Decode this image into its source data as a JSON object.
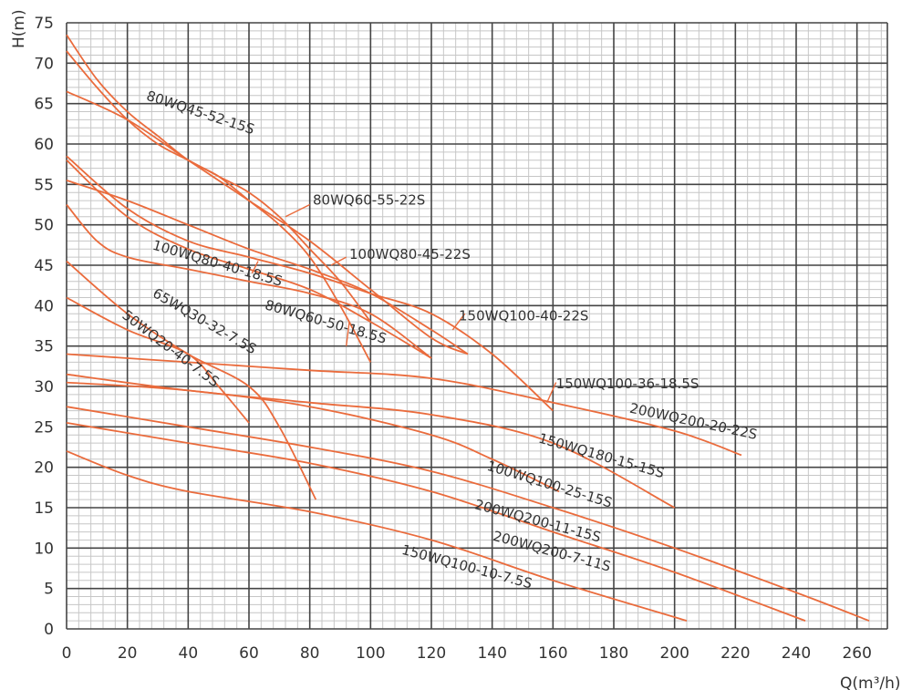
{
  "chart_data": {
    "type": "line",
    "title": "",
    "xlabel": "Q(m³/h)",
    "ylabel": "H(m)",
    "xlim": [
      0,
      270
    ],
    "ylim": [
      0,
      75
    ],
    "x_ticks": [
      0,
      20,
      40,
      60,
      80,
      100,
      120,
      140,
      160,
      180,
      200,
      220,
      240,
      260
    ],
    "y_ticks": [
      0,
      5,
      10,
      15,
      20,
      25,
      30,
      35,
      40,
      45,
      50,
      55,
      60,
      65,
      70,
      75
    ],
    "grid": true,
    "colors": {
      "curve": "#ea6b3c",
      "grid_major": "#444444",
      "grid_minor": "#c6c6c6",
      "text": "#333333"
    },
    "series": [
      {
        "name": "80WQ45-52-15S",
        "points": [
          [
            0,
            73.5
          ],
          [
            10,
            68
          ],
          [
            20,
            64
          ],
          [
            30,
            61
          ],
          [
            40,
            58
          ],
          [
            50,
            56
          ],
          [
            60,
            53
          ],
          [
            70,
            50
          ],
          [
            80,
            46
          ],
          [
            90,
            40
          ],
          [
            100,
            33
          ]
        ]
      },
      {
        "name": "80WQ60-55-22S",
        "points": [
          [
            0,
            71.5
          ],
          [
            10,
            67
          ],
          [
            20,
            63
          ],
          [
            30,
            60
          ],
          [
            40,
            58
          ],
          [
            50,
            56
          ],
          [
            60,
            54
          ],
          [
            70,
            51
          ],
          [
            80,
            47
          ],
          [
            90,
            43
          ],
          [
            100,
            38
          ]
        ]
      },
      {
        "name": "100WQ80-45-22S",
        "points": [
          [
            0,
            66.5
          ],
          [
            20,
            63
          ],
          [
            40,
            58
          ],
          [
            60,
            53
          ],
          [
            80,
            48
          ],
          [
            100,
            42
          ],
          [
            120,
            36
          ],
          [
            132,
            34
          ]
        ]
      },
      {
        "name": "150WQ100-40-22S",
        "points": [
          [
            0,
            58.5
          ],
          [
            20,
            52
          ],
          [
            40,
            48
          ],
          [
            60,
            46
          ],
          [
            80,
            44
          ],
          [
            100,
            41.5
          ],
          [
            120,
            39
          ],
          [
            140,
            34
          ],
          [
            160,
            27
          ]
        ]
      },
      {
        "name": "150WQ100-36-18.5S",
        "points": [
          [
            0,
            55.5
          ],
          [
            20,
            53
          ],
          [
            40,
            50
          ],
          [
            60,
            47
          ],
          [
            80,
            44.5
          ],
          [
            100,
            41.5
          ],
          [
            120,
            37
          ],
          [
            132,
            34
          ]
        ]
      },
      {
        "name": "200WQ200-20-22S",
        "points": [
          [
            0,
            34
          ],
          [
            40,
            33
          ],
          [
            80,
            32
          ],
          [
            120,
            31
          ],
          [
            160,
            28
          ],
          [
            200,
            24.5
          ],
          [
            222,
            21.5
          ]
        ]
      },
      {
        "name": "150WQ180-15-15S",
        "points": [
          [
            0,
            31.5
          ],
          [
            40,
            29.5
          ],
          [
            80,
            28
          ],
          [
            120,
            26.5
          ],
          [
            160,
            23
          ],
          [
            200,
            15
          ]
        ]
      },
      {
        "name": "100WQ100-25-15S",
        "points": [
          [
            0,
            30.5
          ],
          [
            40,
            29.5
          ],
          [
            80,
            27.5
          ],
          [
            120,
            24
          ],
          [
            140,
            21
          ],
          [
            162,
            17
          ]
        ]
      },
      {
        "name": "200WQ200-11-15S",
        "points": [
          [
            0,
            27.5
          ],
          [
            40,
            25
          ],
          [
            80,
            22.5
          ],
          [
            120,
            19.5
          ],
          [
            160,
            15
          ],
          [
            200,
            10
          ],
          [
            240,
            4.5
          ],
          [
            264,
            1
          ]
        ]
      },
      {
        "name": "200WQ200-7-11S",
        "points": [
          [
            0,
            25.5
          ],
          [
            40,
            23
          ],
          [
            80,
            20.5
          ],
          [
            120,
            17
          ],
          [
            160,
            12
          ],
          [
            200,
            7
          ],
          [
            243,
            1
          ]
        ]
      },
      {
        "name": "150WQ100-10-7.5S",
        "points": [
          [
            0,
            22
          ],
          [
            20,
            19
          ],
          [
            40,
            17
          ],
          [
            80,
            14.5
          ],
          [
            120,
            11
          ],
          [
            160,
            6
          ],
          [
            204,
            1
          ]
        ]
      },
      {
        "name": "80WQ60-50-18.5S",
        "points": [
          [
            0,
            52.5
          ],
          [
            10,
            48
          ],
          [
            20,
            46
          ],
          [
            40,
            44.5
          ],
          [
            60,
            43
          ],
          [
            80,
            41.5
          ],
          [
            100,
            39
          ],
          [
            120,
            33.5
          ]
        ]
      },
      {
        "name": "100WQ80-40-18.5S",
        "points": [
          [
            0,
            58
          ],
          [
            20,
            51
          ],
          [
            40,
            47
          ],
          [
            60,
            44.5
          ],
          [
            80,
            42
          ],
          [
            100,
            38
          ],
          [
            120,
            33.5
          ]
        ]
      },
      {
        "name": "65WQ30-32-7.5S",
        "points": [
          [
            0,
            45.5
          ],
          [
            20,
            39
          ],
          [
            40,
            34
          ],
          [
            60,
            30
          ],
          [
            70,
            25
          ],
          [
            82,
            16
          ]
        ]
      },
      {
        "name": "50WQ20-40-7.5S",
        "points": [
          [
            0,
            41
          ],
          [
            20,
            37
          ],
          [
            40,
            34
          ],
          [
            50,
            30
          ],
          [
            60,
            25.5
          ]
        ]
      }
    ],
    "labels": [
      {
        "text": "80WQ45-52-15S",
        "x": 26,
        "y": 65.5,
        "angle": 18
      },
      {
        "text": "80WQ60-55-22S",
        "x": 81,
        "y": 52.5,
        "angle": 0
      },
      {
        "text": "100WQ80-45-22S",
        "x": 93,
        "y": 45.8,
        "angle": 0
      },
      {
        "text": "150WQ100-40-22S",
        "x": 129,
        "y": 38.2,
        "angle": 0
      },
      {
        "text": "150WQ100-36-18.5S",
        "x": 161,
        "y": 29.8,
        "angle": 0
      },
      {
        "text": "200WQ200-20-22S",
        "x": 185,
        "y": 26.8,
        "angle": 12
      },
      {
        "text": "150WQ180-15-15S",
        "x": 155,
        "y": 23.1,
        "angle": 16
      },
      {
        "text": "100WQ100-25-15S",
        "x": 138,
        "y": 19.7,
        "angle": 17
      },
      {
        "text": "200WQ200-11-15S",
        "x": 134,
        "y": 14.9,
        "angle": 15
      },
      {
        "text": "200WQ200-7-11S",
        "x": 140,
        "y": 11.0,
        "angle": 15
      },
      {
        "text": "150WQ100-10-7.5S",
        "x": 110,
        "y": 9.3,
        "angle": 15
      },
      {
        "text": "100WQ80-40-18.5S",
        "x": 28,
        "y": 47.0,
        "angle": 16
      },
      {
        "text": "80WQ60-50-18.5S",
        "x": 65,
        "y": 39.6,
        "angle": 16
      },
      {
        "text": "65WQ30-32-7.5S",
        "x": 28,
        "y": 41.2,
        "angle": 30
      },
      {
        "text": "50WQ20-40-7.5S",
        "x": 18,
        "y": 38.6,
        "angle": 37
      }
    ],
    "leaders": [
      {
        "from": [
          72,
          51
        ],
        "to": [
          80,
          52.5
        ]
      },
      {
        "from": [
          87,
          45
        ],
        "to": [
          92,
          46
        ]
      },
      {
        "from": [
          127,
          37
        ],
        "to": [
          131,
          39
        ]
      },
      {
        "from": [
          158,
          28
        ],
        "to": [
          161,
          30.5
        ]
      },
      {
        "from": [
          63,
          45.5
        ],
        "to": [
          61,
          44
        ]
      },
      {
        "from": [
          93,
          38
        ],
        "to": [
          92,
          35
        ]
      }
    ]
  }
}
